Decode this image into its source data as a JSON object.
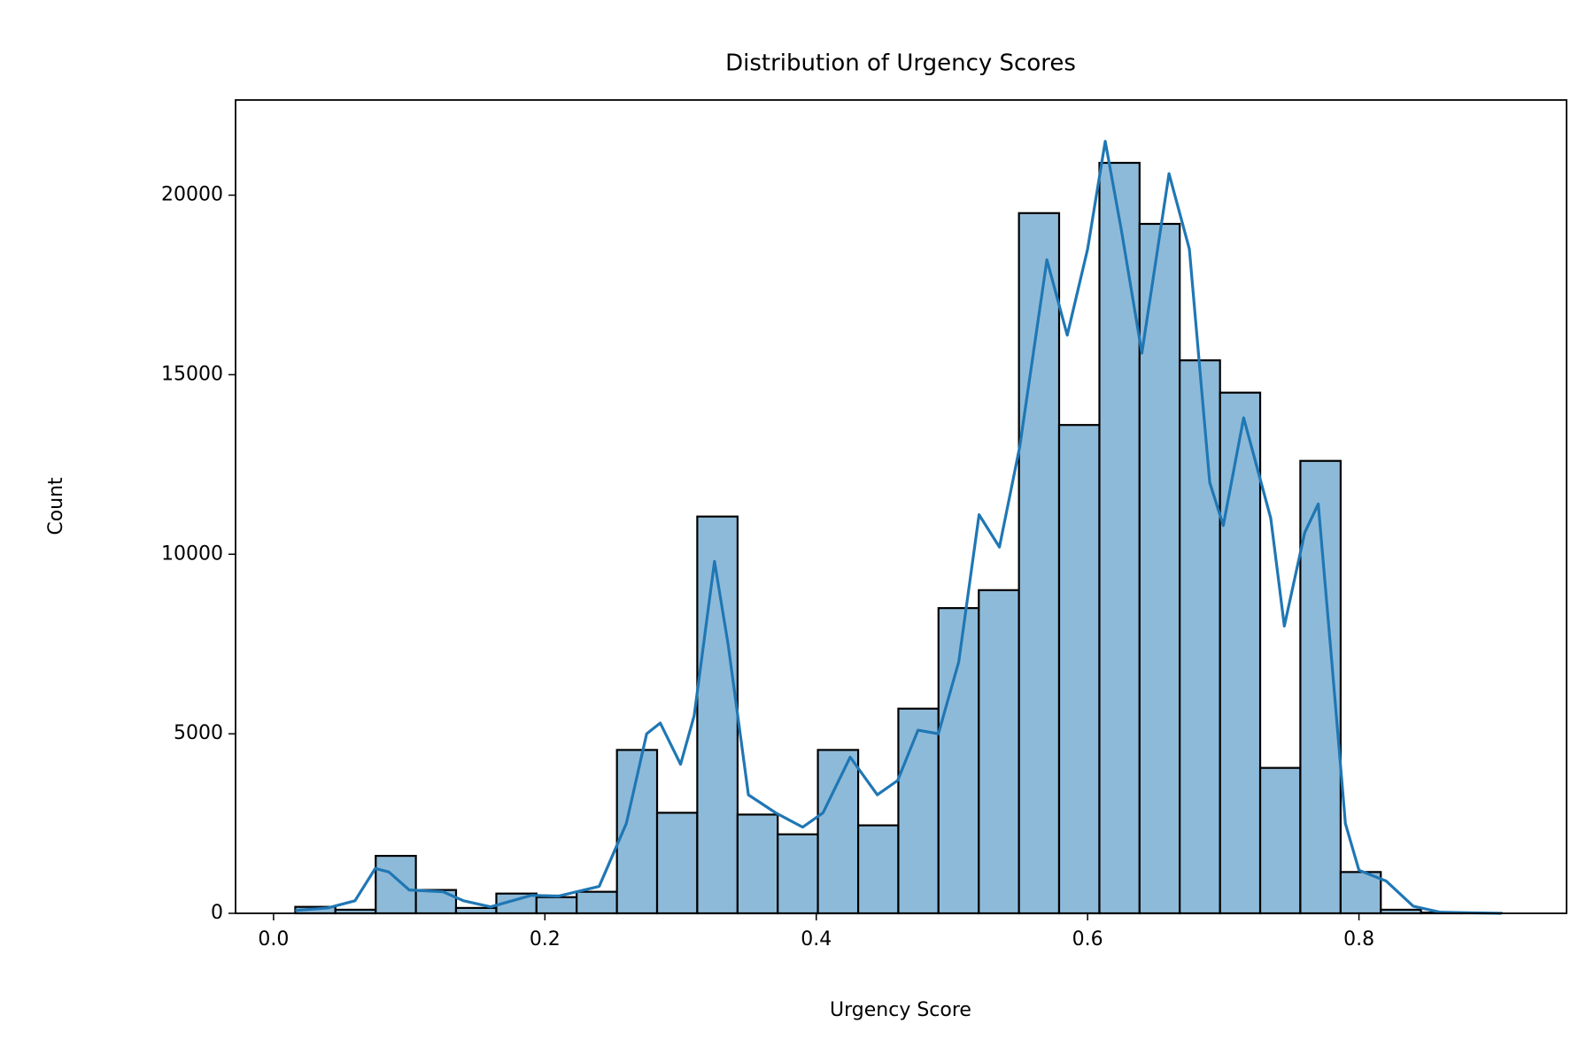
{
  "chart_data": {
    "type": "histogram",
    "title": "Distribution of Urgency Scores",
    "x_label": "Urgency Score",
    "y_label": "Count",
    "bins": [
      0.016,
      0.0456,
      0.0753,
      0.1049,
      0.1345,
      0.1642,
      0.1938,
      0.2234,
      0.2531,
      0.2827,
      0.3123,
      0.342,
      0.3716,
      0.4012,
      0.4309,
      0.4605,
      0.4901,
      0.5198,
      0.5494,
      0.579,
      0.6087,
      0.6383,
      0.6679,
      0.6976,
      0.7272,
      0.7568,
      0.7865,
      0.8161,
      0.8457,
      0.8754,
      0.905
    ],
    "values": [
      180,
      100,
      1600,
      650,
      150,
      550,
      450,
      600,
      4550,
      2800,
      11050,
      2750,
      2200,
      4550,
      2450,
      5700,
      8500,
      9000,
      19500,
      13600,
      20900,
      19200,
      15400,
      14500,
      4050,
      12600,
      1150,
      100,
      20,
      10
    ],
    "color": "#8ebad9",
    "edge_color": "#000000",
    "kde": {
      "color": "#1f77b4",
      "x": [
        0.016,
        0.04,
        0.06,
        0.075,
        0.085,
        0.1,
        0.125,
        0.14,
        0.16,
        0.19,
        0.21,
        0.24,
        0.26,
        0.275,
        0.285,
        0.3,
        0.31,
        0.325,
        0.335,
        0.35,
        0.37,
        0.39,
        0.405,
        0.425,
        0.445,
        0.46,
        0.475,
        0.49,
        0.505,
        0.52,
        0.535,
        0.55,
        0.57,
        0.585,
        0.6,
        0.613,
        0.625,
        0.64,
        0.66,
        0.675,
        0.69,
        0.7,
        0.715,
        0.735,
        0.745,
        0.76,
        0.77,
        0.78,
        0.79,
        0.8,
        0.82,
        0.84,
        0.86,
        0.905
      ],
      "values": [
        80,
        150,
        350,
        1250,
        1150,
        650,
        600,
        350,
        180,
        500,
        480,
        750,
        2500,
        5000,
        5300,
        4150,
        5500,
        9800,
        7500,
        3300,
        2800,
        2400,
        2800,
        4350,
        3300,
        3700,
        5100,
        5000,
        7000,
        11100,
        10200,
        13000,
        18200,
        16100,
        18500,
        21500,
        19000,
        15600,
        20600,
        18500,
        12000,
        10800,
        13800,
        11000,
        8000,
        10600,
        11400,
        7000,
        2500,
        1200,
        900,
        200,
        30,
        0
      ]
    },
    "xlim": [
      -0.028,
      0.953
    ],
    "ylim": [
      0,
      22650
    ],
    "xticks": [
      {
        "value": 0,
        "label": "0.0"
      },
      0.2,
      0.4,
      0.6,
      0.8
    ],
    "yticks": [
      0,
      5000,
      10000,
      15000,
      20000
    ]
  }
}
